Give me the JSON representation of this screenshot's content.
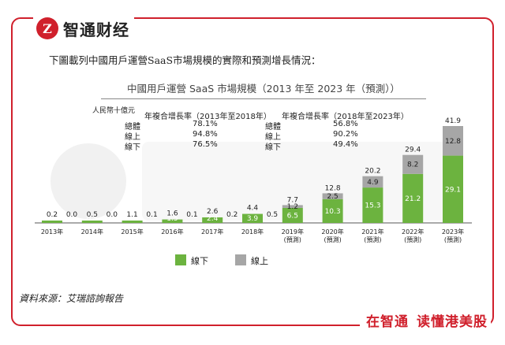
{
  "brand": {
    "logo_glyph": "Z",
    "name": "智通财经",
    "color": "#d0202c"
  },
  "intro_text": "下圖載列中國用戶運營SaaS市場規模的實際和預測增長情況：",
  "source_text": "資料來源：艾瑞諮詢報告",
  "footer": {
    "part1": "在智通",
    "part2": "读懂港美股"
  },
  "cagr_table": {
    "hist_header": "年複合增長率（2013年至2018年）",
    "fcst_header": "年複合增長率（2018年至2023年）",
    "rows": [
      {
        "label": "總體",
        "hist": "78.1%",
        "fcst_label": "總體",
        "fcst": "56.8%"
      },
      {
        "label": "線上",
        "hist": "94.8%",
        "fcst_label": "線上",
        "fcst": "90.2%"
      },
      {
        "label": "線下",
        "hist": "76.5%",
        "fcst_label": "線下",
        "fcst": "49.4%"
      }
    ]
  },
  "chart_data": {
    "type": "bar",
    "stacked": true,
    "title": "中國用戶運營 SaaS 市場規模（2013 年至 2023 年（預測））",
    "unit_label": "人民幣十億元",
    "categories": [
      "2013年",
      "2014年",
      "2015年",
      "2016年",
      "2017年",
      "2018年",
      "2019年\n(預測)",
      "2020年\n(預測)",
      "2021年\n(預測)",
      "2022年\n(預測)",
      "2023年\n(預測)"
    ],
    "series": [
      {
        "name": "線下",
        "color": "#6cb33f",
        "values": [
          0.2,
          0.5,
          1.0,
          1.5,
          2.4,
          3.9,
          6.5,
          10.3,
          15.3,
          21.2,
          29.1
        ]
      },
      {
        "name": "線上",
        "color": "#a6a6a6",
        "values": [
          0.0,
          0.0,
          0.1,
          0.1,
          0.2,
          0.5,
          1.2,
          2.5,
          4.9,
          8.2,
          12.8
        ]
      }
    ],
    "totals": [
      0.2,
      0.5,
      1.1,
      1.6,
      2.6,
      4.4,
      7.7,
      12.8,
      20.2,
      29.4,
      41.9
    ],
    "forecast_from_index": 6,
    "legend": [
      {
        "name": "線下",
        "color": "#6cb33f"
      },
      {
        "name": "線上",
        "color": "#a6a6a6"
      }
    ],
    "legend_position": "bottom-center",
    "ylim": [
      0,
      45
    ],
    "grid": false
  }
}
